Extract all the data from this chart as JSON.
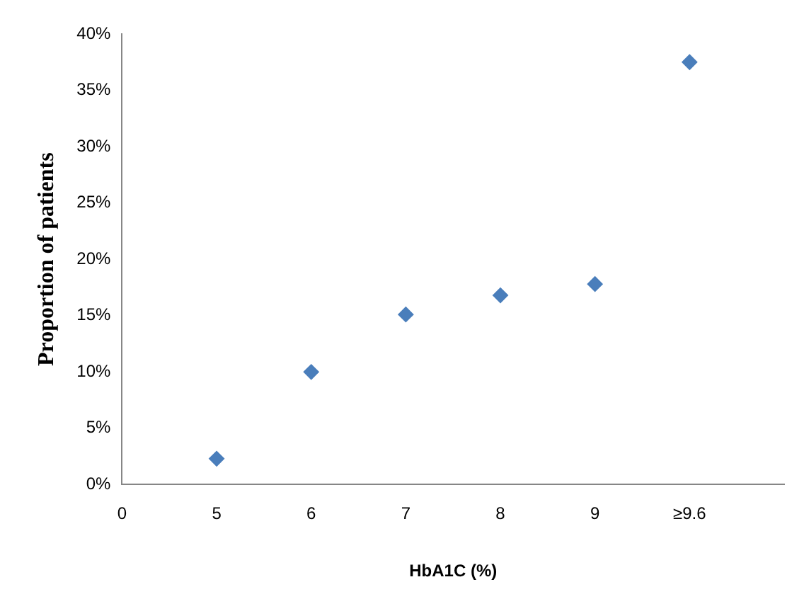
{
  "chart_data": {
    "type": "scatter",
    "xlabel": "HbA1C (%)",
    "ylabel": "Proportion of patients",
    "categories": [
      "0",
      "5",
      "6",
      "7",
      "8",
      "9",
      "≥9.6",
      null
    ],
    "series": [
      {
        "color": "#4a7ebb",
        "values": [
          null,
          2.3,
          10,
          15.1,
          16.8,
          17.8,
          37.5,
          null
        ]
      }
    ],
    "ylim": [
      0,
      40
    ],
    "yticks": [
      {
        "value": 0,
        "label": "0%"
      },
      {
        "value": 5,
        "label": "5%"
      },
      {
        "value": 10,
        "label": "10%"
      },
      {
        "value": 15,
        "label": "15%"
      },
      {
        "value": 20,
        "label": "20%"
      },
      {
        "value": 25,
        "label": "25%"
      },
      {
        "value": 30,
        "label": "30%"
      },
      {
        "value": 35,
        "label": "35%"
      },
      {
        "value": 40,
        "label": "40%"
      }
    ],
    "grid": false,
    "legend": false,
    "marker": "diamond"
  }
}
